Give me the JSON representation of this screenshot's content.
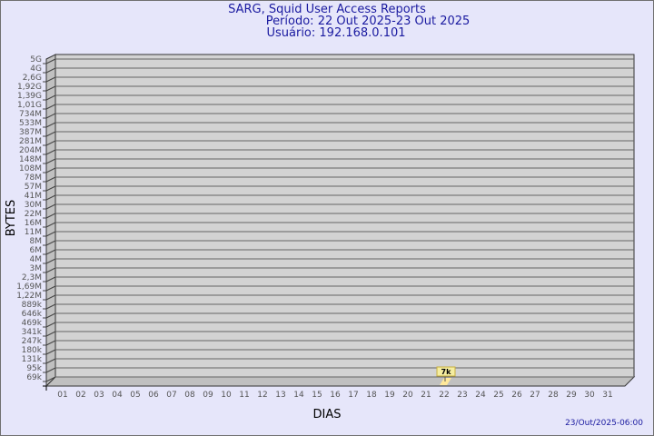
{
  "chart_data": {
    "type": "bar",
    "title": "SARG, Squid User Access Reports",
    "subtitle_period": "Período: 22 Out 2025-23 Out 2025",
    "subtitle_user": "Usuário: 192.168.0.101",
    "xlabel": "DIAS",
    "ylabel": "BYTES",
    "y_scale": "log",
    "y_ticks": [
      "5G",
      "4G",
      "2,6G",
      "1,92G",
      "1,39G",
      "1,01G",
      "734M",
      "533M",
      "387M",
      "281M",
      "204M",
      "148M",
      "108M",
      "78M",
      "57M",
      "41M",
      "30M",
      "22M",
      "16M",
      "11M",
      "8M",
      "6M",
      "4M",
      "3M",
      "2,3M",
      "1,69M",
      "1,22M",
      "889k",
      "646k",
      "469k",
      "341k",
      "247k",
      "180k",
      "131k",
      "95k",
      "69k"
    ],
    "categories": [
      "01",
      "02",
      "03",
      "04",
      "05",
      "06",
      "07",
      "08",
      "09",
      "10",
      "11",
      "12",
      "13",
      "14",
      "15",
      "16",
      "17",
      "18",
      "19",
      "20",
      "21",
      "22",
      "23",
      "24",
      "25",
      "26",
      "27",
      "28",
      "29",
      "30",
      "31"
    ],
    "bars": [
      {
        "category": "22",
        "value_label": "7k",
        "value": 7000
      }
    ],
    "grid": true,
    "colors": {
      "plot": "#d3d3d3",
      "bar": "#ffe89a",
      "label_bg": "#f5eda0",
      "text": "#1a1aa0",
      "axis_text": "#555555"
    }
  },
  "footer": "23/Out/2025-06:00"
}
